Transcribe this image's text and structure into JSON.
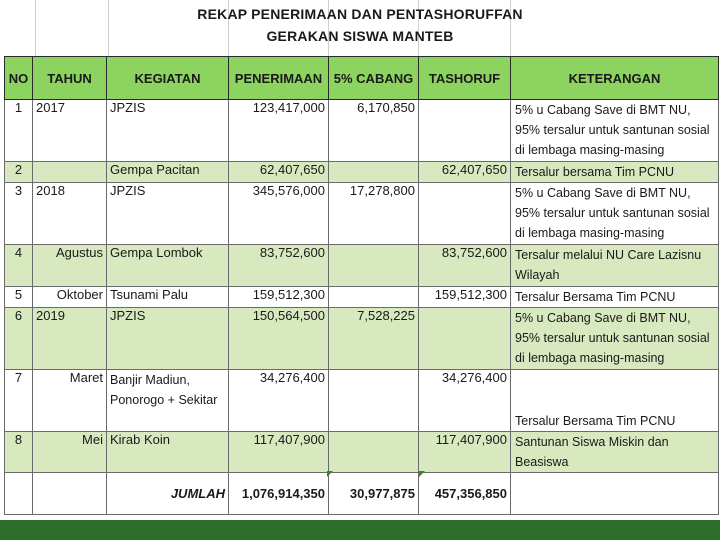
{
  "title_line1": "REKAP PENERIMAAN DAN PENTASHORUFFAN",
  "title_line2": "GERAKAN SISWA MANTEB",
  "headers": {
    "no": "NO",
    "tahun": "TAHUN",
    "kegiatan": "KEGIATAN",
    "penerimaan": "PENERIMAAN",
    "cabang": "5% CABANG",
    "tashoruf": "TASHORUF",
    "keterangan": "KETERANGAN"
  },
  "rows": [
    {
      "no": "1",
      "tahun": "2017",
      "kegiatan": "JPZIS",
      "penerimaan": "123,417,000",
      "cabang": "6,170,850",
      "tashoruf": "",
      "keterangan": "5% u Cabang Save di BMT NU, 95% tersalur untuk santunan sosial di lembaga masing-masing"
    },
    {
      "no": "2",
      "tahun": "",
      "kegiatan": "Gempa Pacitan",
      "penerimaan": "62,407,650",
      "cabang": "",
      "tashoruf": "62,407,650",
      "keterangan": "Tersalur bersama Tim PCNU"
    },
    {
      "no": "3",
      "tahun": "2018",
      "kegiatan": "JPZIS",
      "penerimaan": "345,576,000",
      "cabang": "17,278,800",
      "tashoruf": "",
      "keterangan": "5% u Cabang Save di BMT NU, 95% tersalur untuk santunan sosial di lembaga masing-masing"
    },
    {
      "no": "4",
      "tahun": "Agustus",
      "kegiatan": "Gempa Lombok",
      "penerimaan": "83,752,600",
      "cabang": "",
      "tashoruf": "83,752,600",
      "keterangan": "Tersalur melalui NU Care Lazisnu Wilayah"
    },
    {
      "no": "5",
      "tahun": "Oktober",
      "kegiatan": "Tsunami Palu",
      "penerimaan": "159,512,300",
      "cabang": "",
      "tashoruf": "159,512,300",
      "keterangan": "Tersalur Bersama Tim PCNU"
    },
    {
      "no": "6",
      "tahun": "2019",
      "kegiatan": "JPZIS",
      "penerimaan": "150,564,500",
      "cabang": "7,528,225",
      "tashoruf": "",
      "keterangan": "5% u Cabang Save di BMT NU, 95% tersalur untuk santunan sosial di lembaga masing-masing"
    },
    {
      "no": "7",
      "tahun": "Maret",
      "kegiatan": "Banjir Madiun, Ponorogo +  Sekitar",
      "penerimaan": "34,276,400",
      "cabang": "",
      "tashoruf": "34,276,400",
      "keterangan": "Tersalur Bersama Tim PCNU"
    },
    {
      "no": "8",
      "tahun": "Mei",
      "kegiatan": "Kirab Koin",
      "penerimaan": "117,407,900",
      "cabang": "",
      "tashoruf": "117,407,900",
      "keterangan": "Santunan Siswa Miskin dan Beasiswa"
    }
  ],
  "total": {
    "label": "JUMLAH",
    "penerimaan": "1,076,914,350",
    "cabang": "30,977,875",
    "tashoruf": "457,356,850"
  },
  "colors": {
    "header_green": "#8dd35f",
    "row_green": "#d8e8bf",
    "footer_green": "#2d6f2a"
  }
}
